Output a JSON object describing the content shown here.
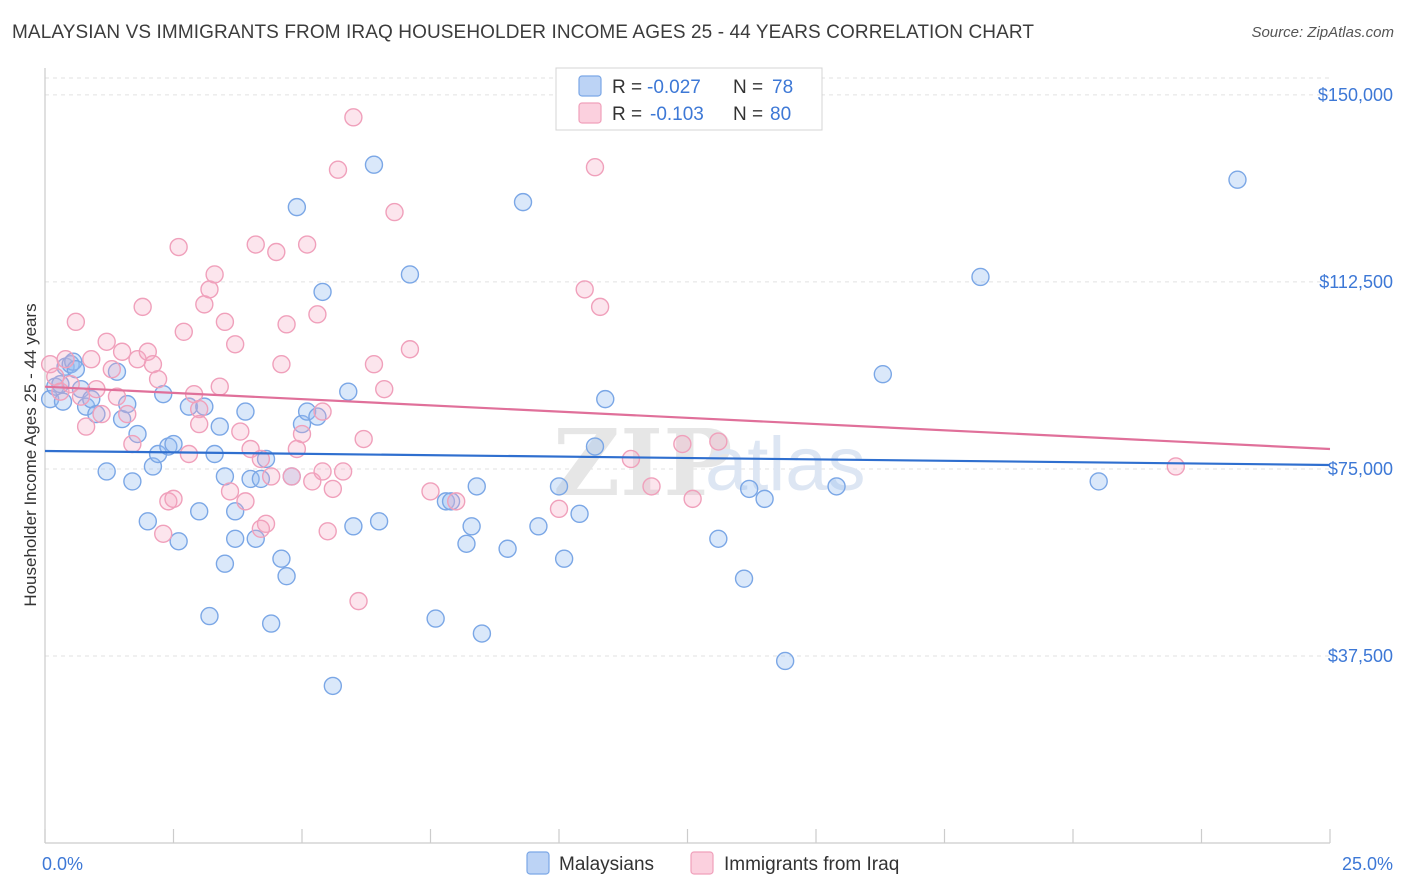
{
  "title": "MALAYSIAN VS IMMIGRANTS FROM IRAQ HOUSEHOLDER INCOME AGES 25 - 44 YEARS CORRELATION CHART",
  "source": "Source: ZipAtlas.com",
  "watermark": {
    "zip": "ZIP",
    "atlas": "atlas"
  },
  "legend_top": {
    "rows": [
      {
        "r_label": "R =",
        "r_value": "-0.027",
        "n_label": "N =",
        "n_value": "78"
      },
      {
        "r_label": "R =",
        "r_value": "-0.103",
        "n_label": "N =",
        "n_value": "80"
      }
    ]
  },
  "legend_bottom": {
    "series1": "Malaysians",
    "series2": "Immigrants from Iraq"
  },
  "chart_data": {
    "type": "scatter",
    "xlabel": "",
    "ylabel": "Householder Income Ages 25 - 44 years",
    "xlim": [
      0,
      25
    ],
    "ylim": [
      0,
      157000
    ],
    "x_tick_labels": [
      "0.0%",
      "25.0%"
    ],
    "y_ticks": [
      37500,
      75000,
      112500,
      150000
    ],
    "y_tick_labels": [
      "$37,500",
      "$75,000",
      "$112,500",
      "$150,000"
    ],
    "grid": true,
    "legend": "top-center",
    "colors": {
      "malaysians": "#7ba7e6",
      "iraq": "#f0a0bb",
      "malaysians_line": "#2f6fcf",
      "iraq_line": "#e0709a"
    },
    "series": [
      {
        "name": "Malaysians",
        "trend": {
          "x": [
            0,
            25
          ],
          "y": [
            78600,
            75800
          ]
        },
        "points": [
          [
            0.1,
            89000
          ],
          [
            0.2,
            91500
          ],
          [
            0.3,
            92000
          ],
          [
            0.35,
            88500
          ],
          [
            0.4,
            95500
          ],
          [
            0.5,
            96000
          ],
          [
            0.55,
            96500
          ],
          [
            0.6,
            95000
          ],
          [
            0.7,
            91000
          ],
          [
            0.8,
            87500
          ],
          [
            0.9,
            89000
          ],
          [
            1.0,
            86000
          ],
          [
            1.2,
            74500
          ],
          [
            1.4,
            94500
          ],
          [
            1.5,
            85000
          ],
          [
            1.6,
            88000
          ],
          [
            1.7,
            72500
          ],
          [
            1.8,
            82000
          ],
          [
            2.0,
            64500
          ],
          [
            2.1,
            75500
          ],
          [
            2.2,
            78000
          ],
          [
            2.3,
            90000
          ],
          [
            2.4,
            79500
          ],
          [
            2.5,
            80000
          ],
          [
            2.6,
            60500
          ],
          [
            2.8,
            87500
          ],
          [
            3.0,
            66500
          ],
          [
            3.1,
            87500
          ],
          [
            3.2,
            45500
          ],
          [
            3.3,
            78000
          ],
          [
            3.4,
            83500
          ],
          [
            3.5,
            73500
          ],
          [
            3.5,
            56000
          ],
          [
            3.7,
            66500
          ],
          [
            3.7,
            61000
          ],
          [
            3.9,
            86500
          ],
          [
            4.0,
            73000
          ],
          [
            4.1,
            61000
          ],
          [
            4.2,
            73000
          ],
          [
            4.3,
            77000
          ],
          [
            4.4,
            44000
          ],
          [
            4.6,
            57000
          ],
          [
            4.7,
            53500
          ],
          [
            4.8,
            73500
          ],
          [
            4.9,
            127500
          ],
          [
            5.0,
            84000
          ],
          [
            5.1,
            86500
          ],
          [
            5.3,
            85500
          ],
          [
            5.4,
            110500
          ],
          [
            5.6,
            31500
          ],
          [
            5.9,
            90500
          ],
          [
            6.0,
            63500
          ],
          [
            6.4,
            136000
          ],
          [
            6.5,
            64500
          ],
          [
            7.1,
            114000
          ],
          [
            7.6,
            45000
          ],
          [
            7.8,
            68500
          ],
          [
            7.9,
            68500
          ],
          [
            8.2,
            60000
          ],
          [
            8.3,
            63500
          ],
          [
            8.4,
            71500
          ],
          [
            8.5,
            42000
          ],
          [
            9.0,
            59000
          ],
          [
            9.3,
            128500
          ],
          [
            9.6,
            63500
          ],
          [
            10.0,
            71500
          ],
          [
            10.1,
            57000
          ],
          [
            10.4,
            66000
          ],
          [
            10.7,
            79500
          ],
          [
            10.9,
            89000
          ],
          [
            13.1,
            61000
          ],
          [
            13.6,
            53000
          ],
          [
            13.7,
            71000
          ],
          [
            14.0,
            69000
          ],
          [
            14.4,
            36500
          ],
          [
            15.4,
            71500
          ],
          [
            16.3,
            94000
          ],
          [
            18.2,
            113500
          ],
          [
            20.5,
            72500
          ],
          [
            23.2,
            133000
          ]
        ]
      },
      {
        "name": "Immigrants from Iraq",
        "trend": {
          "x": [
            0,
            25
          ],
          "y": [
            91500,
            79000
          ]
        },
        "points": [
          [
            0.1,
            96000
          ],
          [
            0.2,
            93500
          ],
          [
            0.3,
            90500
          ],
          [
            0.4,
            97000
          ],
          [
            0.5,
            92000
          ],
          [
            0.6,
            104500
          ],
          [
            0.7,
            89500
          ],
          [
            0.8,
            83500
          ],
          [
            0.9,
            97000
          ],
          [
            1.0,
            91000
          ],
          [
            1.1,
            86000
          ],
          [
            1.2,
            100500
          ],
          [
            1.3,
            95000
          ],
          [
            1.4,
            89500
          ],
          [
            1.5,
            98500
          ],
          [
            1.6,
            86000
          ],
          [
            1.7,
            80000
          ],
          [
            1.8,
            97000
          ],
          [
            1.9,
            107500
          ],
          [
            2.0,
            98500
          ],
          [
            2.1,
            96000
          ],
          [
            2.2,
            93000
          ],
          [
            2.3,
            62000
          ],
          [
            2.4,
            68500
          ],
          [
            2.5,
            69000
          ],
          [
            2.6,
            119500
          ],
          [
            2.7,
            102500
          ],
          [
            2.8,
            78000
          ],
          [
            2.9,
            90000
          ],
          [
            3.0,
            87000
          ],
          [
            3.1,
            108000
          ],
          [
            3.2,
            111000
          ],
          [
            3.3,
            114000
          ],
          [
            3.4,
            91500
          ],
          [
            3.5,
            104500
          ],
          [
            3.6,
            70500
          ],
          [
            3.7,
            100000
          ],
          [
            3.8,
            82500
          ],
          [
            3.9,
            68500
          ],
          [
            4.0,
            79000
          ],
          [
            4.1,
            120000
          ],
          [
            4.2,
            77000
          ],
          [
            4.3,
            64000
          ],
          [
            4.4,
            73500
          ],
          [
            4.5,
            118500
          ],
          [
            4.6,
            96000
          ],
          [
            4.7,
            104000
          ],
          [
            4.8,
            73500
          ],
          [
            4.9,
            79000
          ],
          [
            5.0,
            82000
          ],
          [
            5.1,
            120000
          ],
          [
            5.2,
            72500
          ],
          [
            5.3,
            106000
          ],
          [
            5.4,
            74500
          ],
          [
            5.5,
            62500
          ],
          [
            5.6,
            71000
          ],
          [
            5.7,
            135000
          ],
          [
            5.8,
            74500
          ],
          [
            6.0,
            145500
          ],
          [
            6.2,
            81000
          ],
          [
            6.4,
            96000
          ],
          [
            6.6,
            91000
          ],
          [
            6.8,
            126500
          ],
          [
            7.1,
            99000
          ],
          [
            7.5,
            70500
          ],
          [
            8.0,
            68500
          ],
          [
            10.0,
            67000
          ],
          [
            10.5,
            111000
          ],
          [
            10.7,
            135500
          ],
          [
            10.8,
            107500
          ],
          [
            11.4,
            77000
          ],
          [
            11.8,
            71500
          ],
          [
            12.4,
            80000
          ],
          [
            12.6,
            69000
          ],
          [
            13.1,
            80500
          ],
          [
            22.0,
            75500
          ],
          [
            4.2,
            63000
          ],
          [
            5.4,
            86500
          ],
          [
            6.1,
            48500
          ],
          [
            3.0,
            84000
          ]
        ]
      }
    ]
  }
}
